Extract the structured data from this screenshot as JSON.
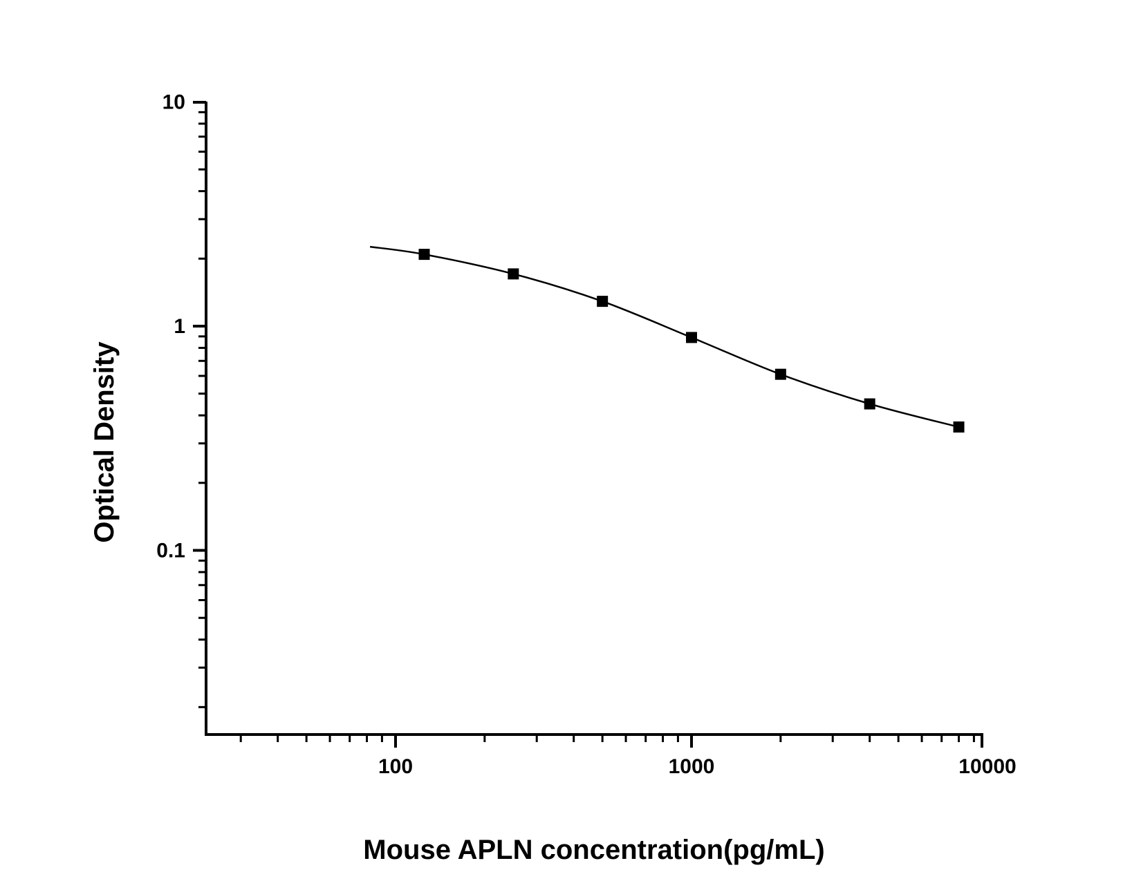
{
  "chart_data": {
    "type": "scatter",
    "title": "",
    "xlabel": "Mouse APLN concentration(pg/mL)",
    "ylabel": "Optical Density",
    "xscale": "log",
    "yscale": "log",
    "xlim": [
      23,
      10000
    ],
    "ylim": [
      0.015,
      10
    ],
    "grid": false,
    "legend": null,
    "x_tick_labels": [
      "100",
      "1000",
      "10000"
    ],
    "y_tick_labels": [
      "0.1",
      "1",
      "10"
    ],
    "series": [
      {
        "name": "Standards",
        "marker": "filled-square",
        "color": "#000000",
        "x": [
          125,
          250,
          500,
          1000,
          2000,
          4000,
          8000
        ],
        "y": [
          2.09,
          1.71,
          1.29,
          0.89,
          0.61,
          0.45,
          0.355
        ]
      },
      {
        "name": "Fitted curve",
        "line": "solid",
        "color": "#000000",
        "x_range": [
          82,
          8000
        ],
        "y_start": 2.26,
        "y_end": 0.35
      }
    ]
  },
  "axes": {
    "x_ticks": [
      {
        "value": 100,
        "label": "100"
      },
      {
        "value": 1000,
        "label": "1000"
      },
      {
        "value": 10000,
        "label": "10000"
      }
    ],
    "y_ticks": [
      {
        "value": 0.1,
        "label": "0.1"
      },
      {
        "value": 1,
        "label": "1"
      },
      {
        "value": 10,
        "label": "10"
      }
    ]
  },
  "labels": {
    "x_title": "Mouse APLN concentration(pg/mL)",
    "y_title": "Optical Density"
  }
}
